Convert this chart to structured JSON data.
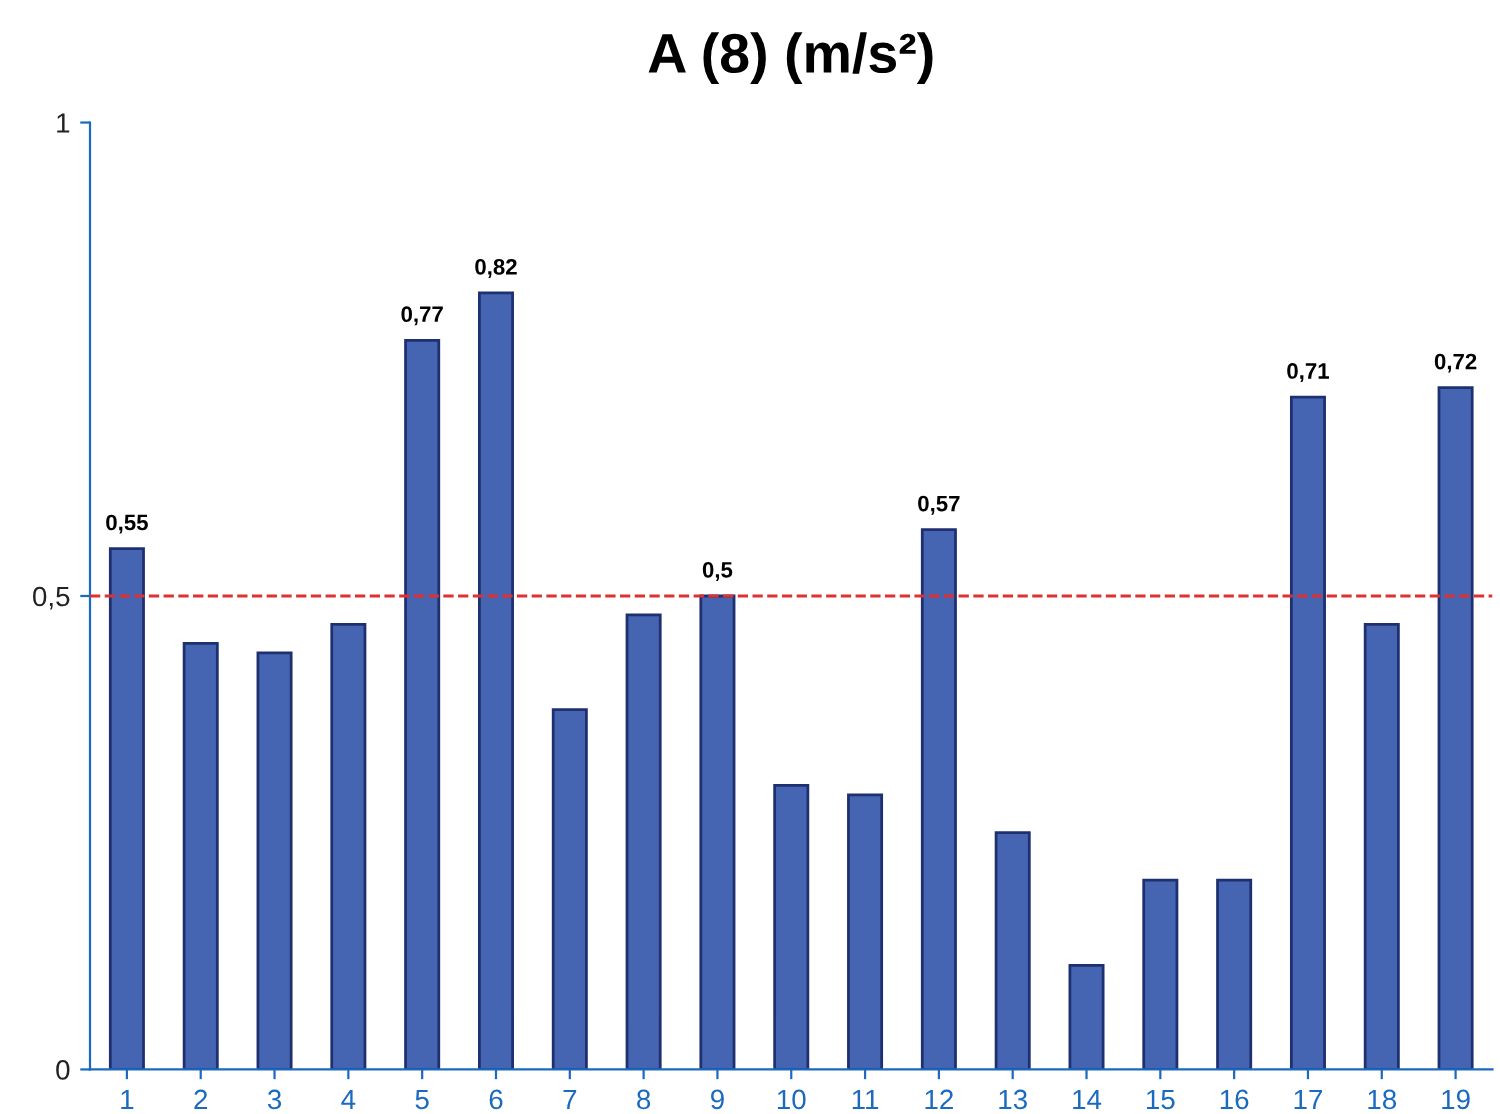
{
  "chart_data": {
    "type": "bar",
    "title": "A (8) (m/s²)",
    "categories": [
      "1",
      "2",
      "3",
      "4",
      "5",
      "6",
      "7",
      "8",
      "9",
      "10",
      "11",
      "12",
      "13",
      "14",
      "15",
      "16",
      "17",
      "18",
      "19"
    ],
    "values": [
      0.55,
      0.45,
      0.44,
      0.47,
      0.77,
      0.82,
      0.38,
      0.48,
      0.5,
      0.3,
      0.29,
      0.57,
      0.25,
      0.11,
      0.2,
      0.2,
      0.71,
      0.47,
      0.72
    ],
    "value_labels": [
      "0,55",
      null,
      null,
      null,
      "0,77",
      "0,82",
      null,
      null,
      "0,5",
      null,
      null,
      "0,57",
      null,
      null,
      null,
      null,
      "0,71",
      null,
      "0,72"
    ],
    "color": "#4565b3",
    "ylim": [
      0,
      1
    ],
    "yticks": [
      0,
      {
        "value": 0.5,
        "label": "0,5"
      },
      1
    ],
    "ref_lines": [
      {
        "axis": "y",
        "value": 0.5,
        "label": null,
        "color": "#e03030",
        "line_style": "dashed"
      }
    ],
    "grid": false
  }
}
